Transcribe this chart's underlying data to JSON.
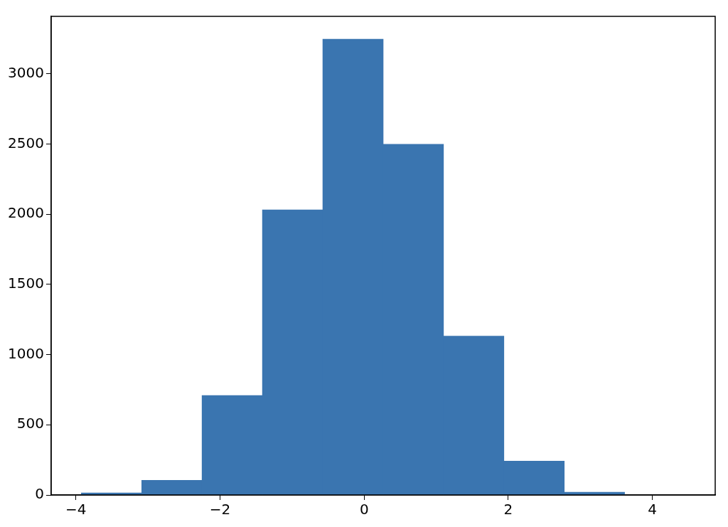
{
  "chart_data": {
    "type": "histogram",
    "bins": [
      -3.925,
      -3.087,
      -2.25,
      -1.412,
      -0.574,
      0.264,
      1.101,
      1.939,
      2.777,
      3.614,
      4.452
    ],
    "values": [
      15,
      105,
      708,
      2030,
      3246,
      2497,
      1131,
      241,
      20,
      null
    ],
    "color": "#3a75b0",
    "xlim": [
      -4.344,
      4.871
    ],
    "xticks": [
      {
        "value": -4,
        "label": "−4"
      },
      {
        "value": -2,
        "label": "−2"
      },
      0,
      2,
      4
    ],
    "ylim": [
      0,
      3408
    ],
    "yticks": [
      0,
      500,
      1000,
      1500,
      2000,
      2500,
      3000
    ],
    "grid": false,
    "legend": false
  }
}
